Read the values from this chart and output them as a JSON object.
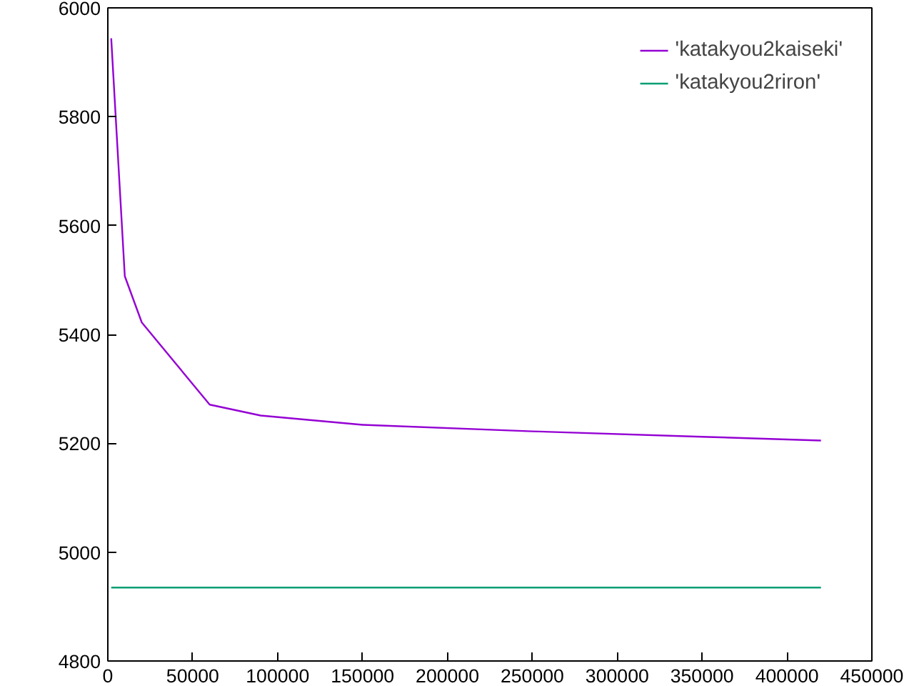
{
  "chart_data": {
    "type": "line",
    "xlim": [
      0,
      450000
    ],
    "ylim": [
      4800,
      6000
    ],
    "xticks": [
      0,
      50000,
      100000,
      150000,
      200000,
      250000,
      300000,
      350000,
      400000,
      450000
    ],
    "yticks": [
      4800,
      5000,
      5200,
      5400,
      5600,
      5800,
      6000
    ],
    "grid": false,
    "legend": "top right",
    "marker": "none",
    "line_style": "solid",
    "series": [
      {
        "name": "'katakyou2kaiseki'",
        "color": "#9400d3",
        "x": [
          2000,
          10000,
          20000,
          60000,
          90000,
          150000,
          250000,
          350000,
          420000
        ],
        "values": [
          5944,
          5507,
          5422,
          5271,
          5251,
          5234,
          5222,
          5212,
          5205
        ]
      },
      {
        "name": "'katakyou2riron'",
        "color": "#009e73",
        "x": [
          2000,
          420000
        ],
        "values": [
          4935,
          4935
        ]
      }
    ]
  }
}
